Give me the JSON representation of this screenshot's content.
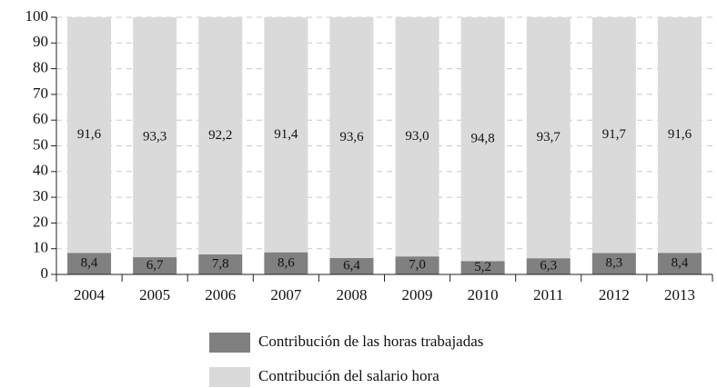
{
  "chart_data": {
    "type": "stacked_bar",
    "categories": [
      "2004",
      "2005",
      "2006",
      "2007",
      "2008",
      "2009",
      "2010",
      "2011",
      "2012",
      "2013"
    ],
    "series": [
      {
        "name": "Contribución de las horas trabajadas",
        "color": "#808080",
        "values": [
          8.4,
          6.7,
          7.8,
          8.6,
          6.4,
          7.0,
          5.2,
          6.3,
          8.3,
          8.4
        ],
        "value_labels": [
          "8,4",
          "6,7",
          "7,8",
          "8,6",
          "6,4",
          "7,0",
          "5,2",
          "6,3",
          "8,3",
          "8,4"
        ]
      },
      {
        "name": "Contribución del salario hora",
        "color": "#dadadb",
        "values": [
          91.6,
          93.3,
          92.2,
          91.4,
          93.6,
          93.0,
          94.8,
          93.7,
          91.7,
          91.6
        ],
        "value_labels": [
          "91,6",
          "93,3",
          "92,2",
          "91,4",
          "93,6",
          "93,0",
          "94,8",
          "93,7",
          "91,7",
          "91,6"
        ]
      }
    ],
    "ylim": [
      0,
      100
    ],
    "yticks": [
      0,
      10,
      20,
      30,
      40,
      50,
      60,
      70,
      80,
      90,
      100
    ],
    "grid": true,
    "legend": "bottom"
  }
}
